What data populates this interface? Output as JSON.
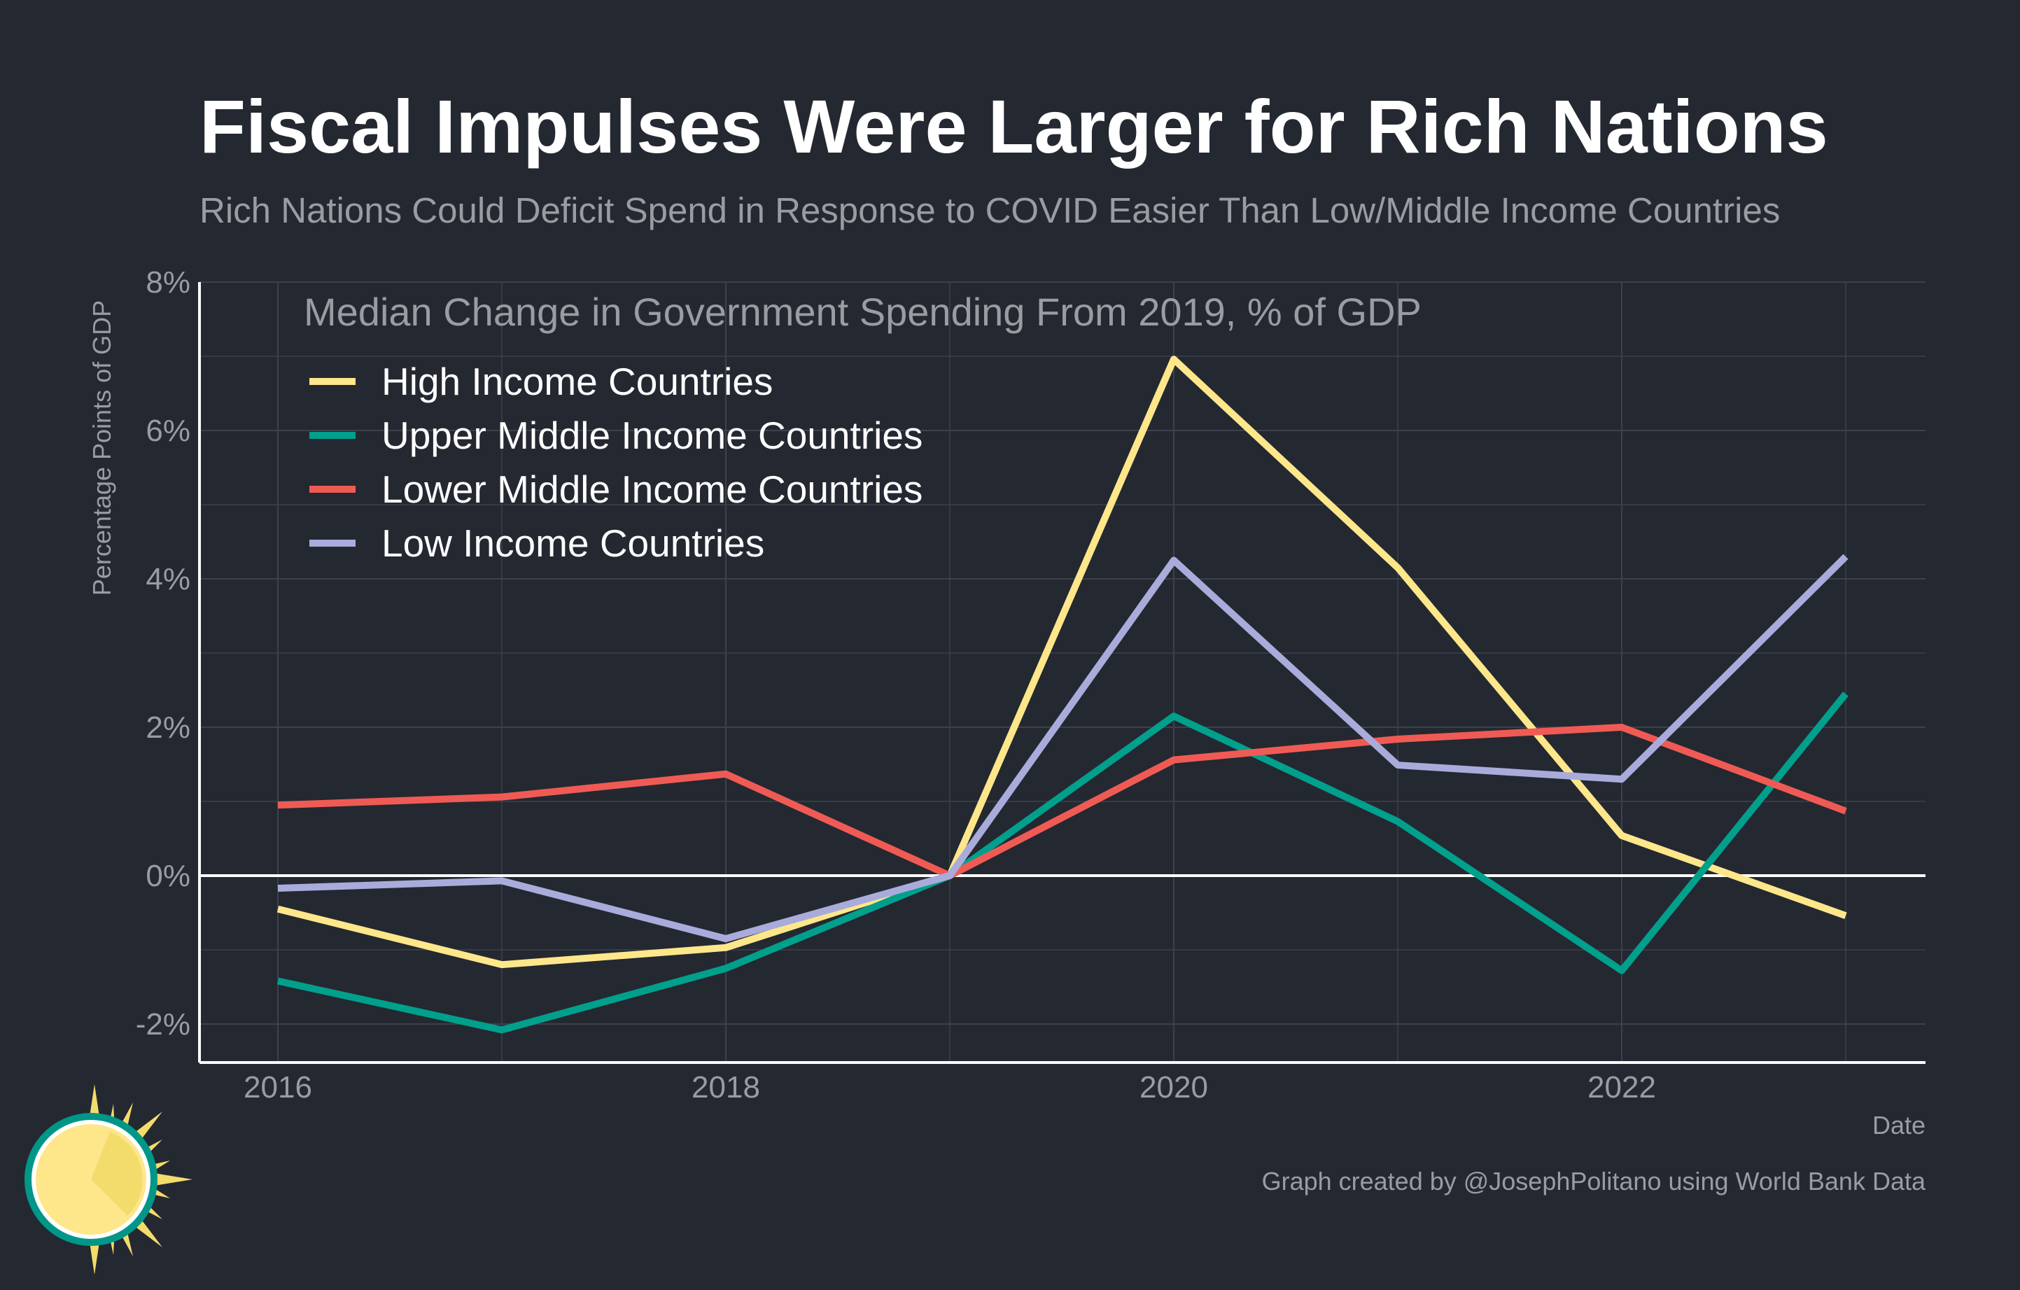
{
  "colors": {
    "background": "#242831",
    "grid": "#3c414b",
    "text_muted": "#9a9ca2",
    "text": "#ffffff"
  },
  "chart_data": {
    "type": "line",
    "title": "Fiscal Impulses Were Larger for Rich Nations",
    "subtitle": "Rich Nations Could Deficit Spend in Response to COVID Easier Than Low/Middle Income Countries",
    "legend_title": "Median Change in Government Spending From 2019, % of GDP",
    "legend_placement": "top-left",
    "xlabel": "Date",
    "ylabel": "Percentage Points of GDP",
    "credit": "Graph created by @JosephPolitano using World Bank Data",
    "x": [
      2016,
      2017,
      2018,
      2019,
      2020,
      2021,
      2022,
      2023
    ],
    "xlim": [
      2015.65,
      2023.35
    ],
    "ylim": [
      -2.5,
      8
    ],
    "grid": true,
    "x_ticks": [
      {
        "value": 2016,
        "label": "2016"
      },
      {
        "value": 2018,
        "label": "2018"
      },
      {
        "value": 2020,
        "label": "2020"
      },
      {
        "value": 2022,
        "label": "2022"
      }
    ],
    "y_ticks": [
      {
        "value": -2,
        "label": "-2%"
      },
      {
        "value": 0,
        "label": "0%"
      },
      {
        "value": 2,
        "label": "2%"
      },
      {
        "value": 4,
        "label": "4%"
      },
      {
        "value": 6,
        "label": "6%"
      },
      {
        "value": 8,
        "label": "8%"
      }
    ],
    "series": [
      {
        "name": "High Income Countries",
        "color": "#fee78a",
        "values": [
          -0.45,
          -1.2,
          -0.97,
          0,
          6.96,
          4.15,
          0.54,
          -0.54
        ]
      },
      {
        "name": "Upper Middle Income Countries",
        "color": "#00a08c",
        "values": [
          -1.42,
          -2.08,
          -1.25,
          0,
          2.15,
          0.73,
          -1.28,
          2.45
        ]
      },
      {
        "name": "Lower Middle Income Countries",
        "color": "#ef5b54",
        "values": [
          0.95,
          1.06,
          1.37,
          0,
          1.56,
          1.84,
          2.0,
          0.87
        ]
      },
      {
        "name": "Low Income Countries",
        "color": "#a9acdb",
        "values": [
          -0.17,
          -0.07,
          -0.85,
          0,
          4.25,
          1.49,
          1.3,
          4.3
        ]
      }
    ]
  }
}
